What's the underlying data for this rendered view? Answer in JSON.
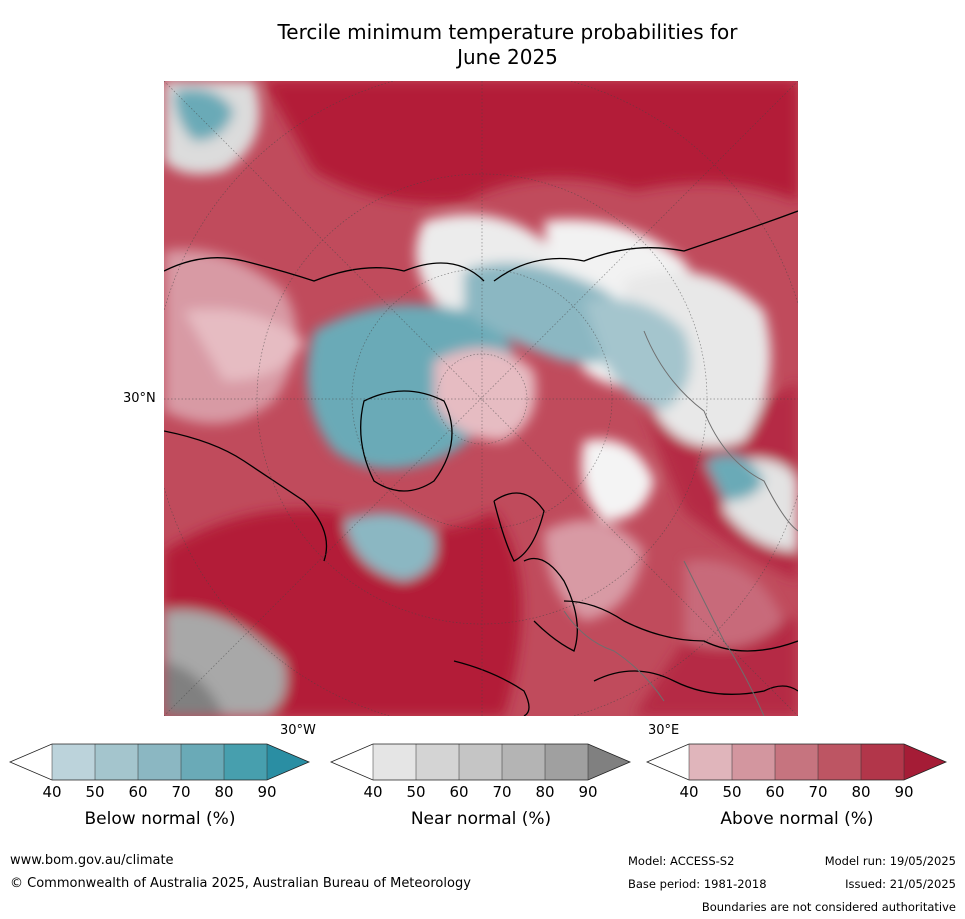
{
  "title": {
    "line1": "Tercile minimum temperature probabilities for",
    "line2": "June 2025"
  },
  "map": {
    "projection": "north-polar-stereographic",
    "latitude_label": "30°N",
    "longitude_labels": {
      "west": "30°W",
      "east": "30°E"
    },
    "graticule": "dotted",
    "colors": {
      "above_dominant": "#b31d38",
      "below_dominant": "#3a9db0",
      "near_dominant": "#9a9a9a"
    }
  },
  "legends": [
    {
      "title": "Below normal (%)",
      "ticks": [
        "40",
        "50",
        "60",
        "70",
        "80",
        "90"
      ],
      "colors": [
        "#ffffff",
        "#bcd3db",
        "#a4c5cd",
        "#8bb7c2",
        "#6aaab7",
        "#479fae",
        "#2a8ea3"
      ]
    },
    {
      "title": "Near normal (%)",
      "ticks": [
        "40",
        "50",
        "60",
        "70",
        "80",
        "90"
      ],
      "colors": [
        "#ffffff",
        "#e5e5e5",
        "#d4d4d4",
        "#c5c5c5",
        "#b4b4b4",
        "#a0a0a0",
        "#808080"
      ]
    },
    {
      "title": "Above normal (%)",
      "ticks": [
        "40",
        "50",
        "60",
        "70",
        "80",
        "90"
      ],
      "colors": [
        "#ffffff",
        "#e0b5bb",
        "#d3969f",
        "#c6747f",
        "#bd5563",
        "#b2364a",
        "#a51c36"
      ]
    }
  ],
  "footer": {
    "website": "www.bom.gov.au/climate",
    "copyright": "© Commonwealth of Australia 2025, Australian Bureau of Meteorology",
    "model": "Model: ACCESS-S2",
    "model_run": "Model run: 19/05/2025",
    "base_period": "Base period: 1981-2018",
    "issued": "Issued: 21/05/2025",
    "disclaimer": "Boundaries are not considered authoritative"
  }
}
